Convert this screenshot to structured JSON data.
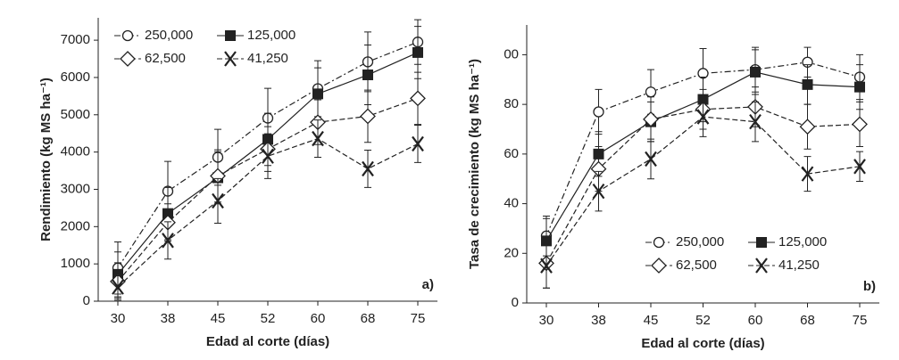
{
  "chart_data": [
    {
      "type": "line",
      "xlabel": "Edad al corte (días)",
      "ylabel": "Rendimiento (kg MS ha⁻¹)",
      "panel_label": "a)",
      "categories": [
        "30",
        "38",
        "45",
        "52",
        "60",
        "68",
        "75"
      ],
      "ylim": [
        0,
        7600
      ],
      "yticks": [
        0,
        1000,
        2000,
        3000,
        4000,
        5000,
        6000,
        7000
      ],
      "legend": "upper left",
      "series": [
        {
          "name": "250,000",
          "color": "#222222",
          "marker": "circle",
          "dash": "7 3 2 3",
          "values": [
            890,
            2950,
            3860,
            4910,
            5700,
            6420,
            6950
          ],
          "errors": [
            700,
            800,
            750,
            800,
            750,
            800,
            600
          ]
        },
        {
          "name": "125,000",
          "color": "#222222",
          "marker": "square",
          "dash": "none",
          "values": [
            720,
            2350,
            3310,
            4340,
            5560,
            6070,
            6670
          ],
          "errors": [
            600,
            700,
            700,
            700,
            700,
            800,
            700
          ]
        },
        {
          "name": "62,500",
          "color": "#222222",
          "marker": "diamond",
          "dash": "6 3",
          "values": [
            530,
            2110,
            3360,
            4080,
            4800,
            4960,
            5440
          ],
          "errors": [
            500,
            500,
            700,
            600,
            600,
            700,
            700
          ]
        },
        {
          "name": "41,250",
          "color": "#222222",
          "marker": "x",
          "dash": "6 3",
          "values": [
            380,
            1630,
            2690,
            3890,
            4360,
            3550,
            4220
          ],
          "errors": [
            300,
            500,
            600,
            600,
            500,
            500,
            500
          ]
        }
      ]
    },
    {
      "type": "line",
      "xlabel": "Edad al corte (días)",
      "ylabel": "Tasa de crecimiento (kg MS ha⁻¹)",
      "panel_label": "b)",
      "categories": [
        "30",
        "38",
        "45",
        "52",
        "60",
        "68",
        "75"
      ],
      "ylim": [
        0,
        112
      ],
      "yticks": [
        0,
        20,
        40,
        60,
        80,
        {
          "value": 100,
          "label": "00"
        }
      ],
      "legend": "lower right",
      "series": [
        {
          "name": "250,000",
          "color": "#222222",
          "marker": "circle",
          "dash": "7 3 2 3",
          "values": [
            27,
            77,
            85,
            92.5,
            94,
            97,
            91
          ],
          "errors": [
            8,
            9,
            9,
            10,
            9,
            6,
            9
          ]
        },
        {
          "name": "125,000",
          "color": "#222222",
          "marker": "square",
          "dash": "none",
          "values": [
            25,
            60,
            73,
            82,
            93,
            88,
            87
          ],
          "errors": [
            9,
            9,
            8,
            9,
            9,
            8,
            9
          ]
        },
        {
          "name": "62,500",
          "color": "#222222",
          "marker": "diamond",
          "dash": "6 3",
          "values": [
            16,
            54,
            74,
            78,
            79,
            71,
            72
          ],
          "errors": [
            10,
            9,
            9,
            8,
            8,
            9,
            9
          ]
        },
        {
          "name": "41,250",
          "color": "#222222",
          "marker": "x",
          "dash": "6 3",
          "values": [
            15,
            45,
            58,
            75,
            73,
            52,
            55
          ],
          "errors": [
            9,
            8,
            8,
            8,
            8,
            7,
            6
          ]
        }
      ]
    }
  ]
}
